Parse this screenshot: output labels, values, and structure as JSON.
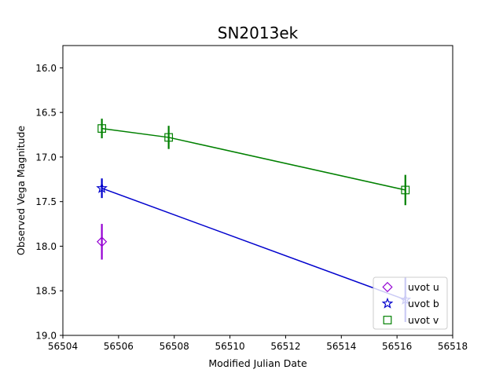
{
  "chart_data": {
    "type": "scatter",
    "title": "SN2013ek",
    "xlabel": "Modified Julian Date",
    "ylabel": "Observed Vega Magnitude",
    "xlim": [
      56504,
      56518
    ],
    "ylim": [
      19.0,
      15.75
    ],
    "y_inverted": true,
    "grid": false,
    "legend_position": "lower-right",
    "x_ticks": [
      "56504",
      "56506",
      "56508",
      "56510",
      "56512",
      "56514",
      "56516",
      "56518"
    ],
    "y_ticks": [
      "16.0",
      "16.5",
      "17.0",
      "17.5",
      "18.0",
      "18.5",
      "19.0"
    ],
    "series": [
      {
        "name": "uvot u",
        "color": "#9400d3",
        "marker": "diamond",
        "line": false,
        "points": [
          {
            "x": 56505.4,
            "y": 17.95,
            "err": 0.2
          }
        ]
      },
      {
        "name": "uvot b",
        "color": "#0000cd",
        "marker": "star",
        "line": true,
        "points": [
          {
            "x": 56505.4,
            "y": 17.35,
            "err": 0.11
          },
          {
            "x": 56516.3,
            "y": 18.6,
            "err": 0.25
          }
        ]
      },
      {
        "name": "uvot v",
        "color": "#008000",
        "marker": "square",
        "line": true,
        "points": [
          {
            "x": 56505.4,
            "y": 16.68,
            "err": 0.11
          },
          {
            "x": 56507.8,
            "y": 16.78,
            "err": 0.13
          },
          {
            "x": 56516.3,
            "y": 17.37,
            "err": 0.17
          }
        ]
      }
    ]
  }
}
